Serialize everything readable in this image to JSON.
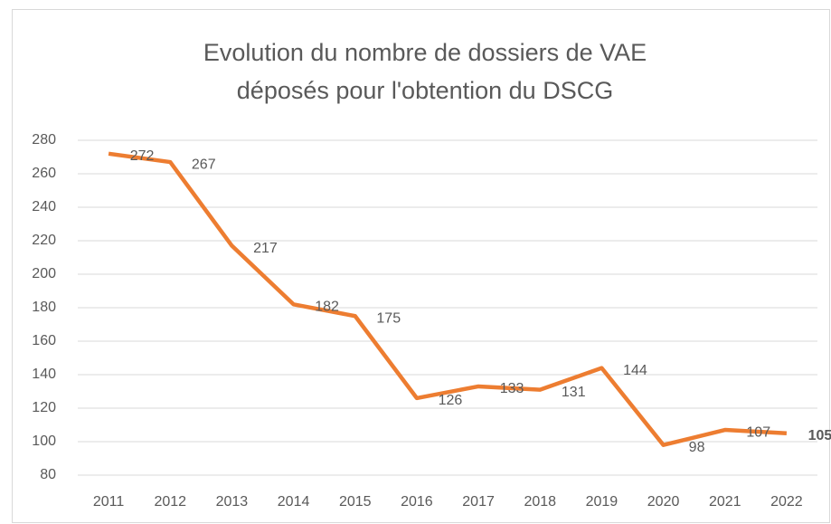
{
  "chart_data": {
    "type": "line",
    "title": [
      "Evolution du nombre de dossiers de VAE",
      "déposés pour l'obtention du DSCG"
    ],
    "categories": [
      "2011",
      "2012",
      "2013",
      "2014",
      "2015",
      "2016",
      "2017",
      "2018",
      "2019",
      "2020",
      "2021",
      "2022"
    ],
    "values": [
      272,
      267,
      217,
      182,
      175,
      126,
      133,
      131,
      144,
      98,
      107,
      105
    ],
    "color": "#ed7d31",
    "ylim": [
      80,
      280
    ],
    "yticks": [
      80,
      100,
      120,
      140,
      160,
      180,
      200,
      220,
      240,
      260,
      280
    ],
    "grid": true
  }
}
